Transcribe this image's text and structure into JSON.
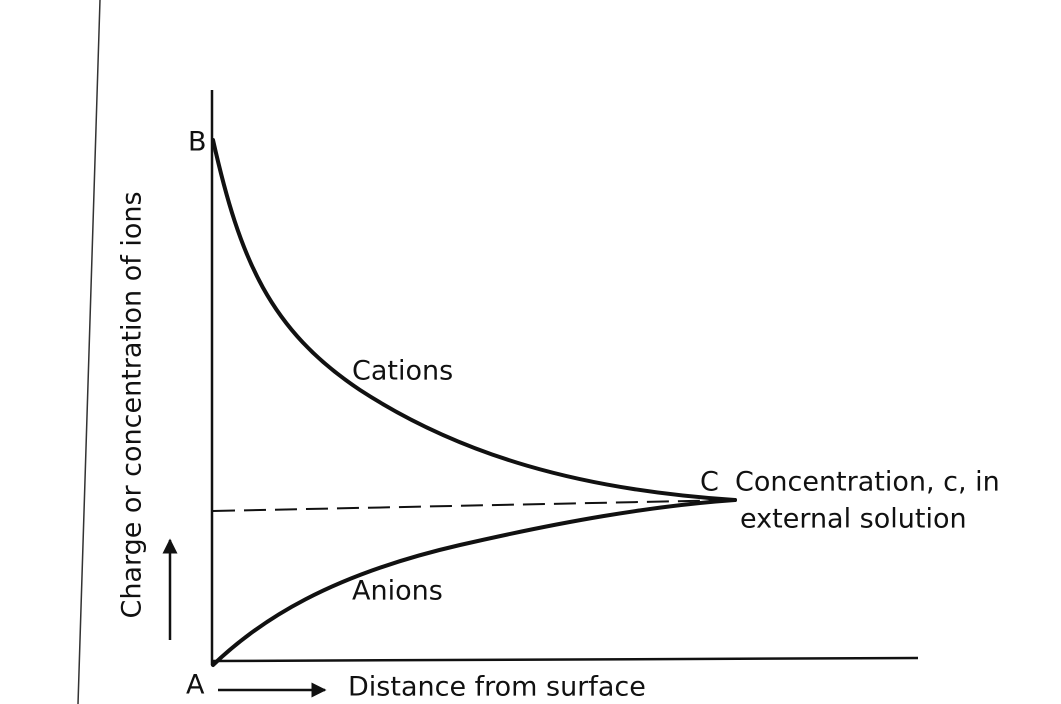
{
  "labels": {
    "point_b": "B",
    "point_a": "A",
    "point_c": "C",
    "cations": "Cations",
    "anions": "Anions",
    "concentration_line1": "Concentration, c, in",
    "concentration_line2": "external solution",
    "x_axis": "Distance from surface",
    "y_axis": "Charge or concentration of ions"
  }
}
